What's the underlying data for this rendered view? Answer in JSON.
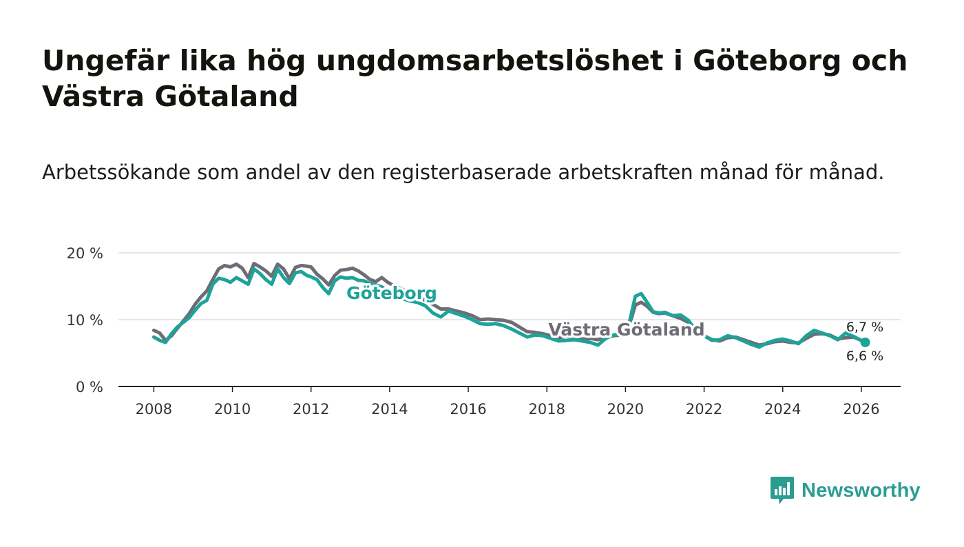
{
  "title": "Ungefär lika hög ungdomsarbetslöshet i Göteborg och Västra Götaland",
  "subtitle": "Arbetssökande som andel av den registerbaserade arbetskraften månad för månad.",
  "brand": {
    "name": "Newsworthy",
    "color": "#2a9d91"
  },
  "chart_data": {
    "type": "line",
    "title": "Ungefär lika hög ungdomsarbetslöshet i Göteborg och Västra Götaland",
    "subtitle": "Arbetssökande som andel av den registerbaserade arbetskraften månad för månad.",
    "xlabel": "",
    "ylabel": "",
    "xlim": [
      2007.1,
      2027.0
    ],
    "ylim": [
      0,
      20
    ],
    "y_ticks": [
      0,
      10,
      20
    ],
    "y_tick_labels": [
      "0 %",
      "10 %",
      "20 %"
    ],
    "x_ticks": [
      2008,
      2010,
      2012,
      2014,
      2016,
      2018,
      2020,
      2022,
      2024,
      2026
    ],
    "x_tick_labels": [
      "2008",
      "2010",
      "2012",
      "2014",
      "2016",
      "2018",
      "2020",
      "2022",
      "2024",
      "2026"
    ],
    "grid": "horizontal",
    "series": [
      {
        "name": "Västra Götaland",
        "label": "Västra Götaland",
        "color": "#6e6c74",
        "end_label": "6,7 %",
        "x": [
          2008.0,
          2008.15,
          2008.3,
          2008.45,
          2008.6,
          2008.75,
          2008.9,
          2009.05,
          2009.2,
          2009.35,
          2009.5,
          2009.65,
          2009.8,
          2009.95,
          2010.1,
          2010.25,
          2010.4,
          2010.55,
          2010.7,
          2010.85,
          2011.0,
          2011.15,
          2011.3,
          2011.45,
          2011.6,
          2011.75,
          2011.9,
          2012.0,
          2012.15,
          2012.3,
          2012.45,
          2012.6,
          2012.75,
          2012.9,
          2013.05,
          2013.2,
          2013.35,
          2013.5,
          2013.65,
          2013.8,
          2013.95,
          2014.1,
          2014.3,
          2014.5,
          2014.7,
          2014.9,
          2015.1,
          2015.3,
          2015.5,
          2015.7,
          2015.9,
          2016.1,
          2016.3,
          2016.5,
          2016.7,
          2016.9,
          2017.1,
          2017.3,
          2017.5,
          2017.7,
          2017.9,
          2018.1,
          2018.3,
          2018.5,
          2018.7,
          2018.9,
          2019.1,
          2019.3,
          2019.5,
          2019.7,
          2019.9,
          2020.1,
          2020.25,
          2020.4,
          2020.55,
          2020.7,
          2020.85,
          2021.0,
          2021.2,
          2021.4,
          2021.6,
          2021.8,
          2022.0,
          2022.2,
          2022.4,
          2022.6,
          2022.8,
          2023.0,
          2023.2,
          2023.4,
          2023.6,
          2023.8,
          2024.0,
          2024.2,
          2024.4,
          2024.6,
          2024.8,
          2025.0,
          2025.2,
          2025.4,
          2025.6,
          2025.8,
          2026.0,
          2026.1
        ],
        "y": [
          8.4,
          8.0,
          6.9,
          7.6,
          8.7,
          9.8,
          10.9,
          12.3,
          13.4,
          14.3,
          16.0,
          17.6,
          18.1,
          17.9,
          18.3,
          17.7,
          16.3,
          18.4,
          17.9,
          17.3,
          16.5,
          18.3,
          17.6,
          16.1,
          17.8,
          18.1,
          18.0,
          17.9,
          16.8,
          16.1,
          15.2,
          16.6,
          17.4,
          17.5,
          17.7,
          17.3,
          16.7,
          16.0,
          15.7,
          16.3,
          15.6,
          15.1,
          14.6,
          14.0,
          13.5,
          12.9,
          12.3,
          11.6,
          11.6,
          11.3,
          11.0,
          10.6,
          10.0,
          10.1,
          10.0,
          9.9,
          9.6,
          8.9,
          8.2,
          8.1,
          7.9,
          7.6,
          7.3,
          7.5,
          7.3,
          7.1,
          7.2,
          7.0,
          7.4,
          7.6,
          7.7,
          9.2,
          12.2,
          12.6,
          12.0,
          11.1,
          10.9,
          11.0,
          10.6,
          10.2,
          9.6,
          8.5,
          7.6,
          7.0,
          6.8,
          7.3,
          7.4,
          7.0,
          6.6,
          6.2,
          6.4,
          6.7,
          6.8,
          6.6,
          6.5,
          7.2,
          7.8,
          7.9,
          7.7,
          7.1,
          7.3,
          7.4,
          6.9,
          6.7
        ]
      },
      {
        "name": "Göteborg",
        "label": "Göteborg",
        "color": "#1da399",
        "end_label": "6,6 %",
        "x": [
          2008.0,
          2008.15,
          2008.3,
          2008.45,
          2008.6,
          2008.75,
          2008.9,
          2009.05,
          2009.2,
          2009.35,
          2009.5,
          2009.65,
          2009.8,
          2009.95,
          2010.1,
          2010.25,
          2010.4,
          2010.55,
          2010.7,
          2010.85,
          2011.0,
          2011.15,
          2011.3,
          2011.45,
          2011.6,
          2011.75,
          2011.9,
          2012.0,
          2012.15,
          2012.3,
          2012.45,
          2012.6,
          2012.75,
          2012.9,
          2013.05,
          2013.2,
          2013.35,
          2013.5,
          2013.65,
          2013.8,
          2013.95,
          2014.1,
          2014.3,
          2014.5,
          2014.7,
          2014.9,
          2015.1,
          2015.3,
          2015.5,
          2015.7,
          2015.9,
          2016.1,
          2016.3,
          2016.5,
          2016.7,
          2016.9,
          2017.1,
          2017.3,
          2017.5,
          2017.7,
          2017.9,
          2018.1,
          2018.3,
          2018.5,
          2018.7,
          2018.9,
          2019.1,
          2019.3,
          2019.5,
          2019.7,
          2019.9,
          2020.1,
          2020.25,
          2020.4,
          2020.55,
          2020.7,
          2020.85,
          2021.0,
          2021.2,
          2021.4,
          2021.6,
          2021.8,
          2022.0,
          2022.2,
          2022.4,
          2022.6,
          2022.8,
          2023.0,
          2023.2,
          2023.4,
          2023.6,
          2023.8,
          2024.0,
          2024.2,
          2024.4,
          2024.6,
          2024.8,
          2025.0,
          2025.2,
          2025.4,
          2025.6,
          2025.8,
          2026.0,
          2026.1
        ],
        "y": [
          7.4,
          6.9,
          6.6,
          7.9,
          8.9,
          9.6,
          10.3,
          11.4,
          12.4,
          12.9,
          15.3,
          16.2,
          16.0,
          15.6,
          16.3,
          15.8,
          15.3,
          17.6,
          16.9,
          16.0,
          15.3,
          17.6,
          16.3,
          15.4,
          17.0,
          17.2,
          16.6,
          16.4,
          16.0,
          14.8,
          13.9,
          15.8,
          16.4,
          16.2,
          16.3,
          15.9,
          15.8,
          15.4,
          15.2,
          14.9,
          14.2,
          13.6,
          13.2,
          12.8,
          12.6,
          12.1,
          11.0,
          10.4,
          11.3,
          10.9,
          10.5,
          10.0,
          9.4,
          9.3,
          9.4,
          9.1,
          8.6,
          8.0,
          7.4,
          7.7,
          7.6,
          7.2,
          6.8,
          6.9,
          7.0,
          6.8,
          6.6,
          6.2,
          7.2,
          7.7,
          7.9,
          9.6,
          13.5,
          13.9,
          12.6,
          11.2,
          11.0,
          11.1,
          10.6,
          10.7,
          9.9,
          8.3,
          7.6,
          6.9,
          7.0,
          7.6,
          7.3,
          6.8,
          6.3,
          5.9,
          6.5,
          6.9,
          7.1,
          6.8,
          6.4,
          7.6,
          8.4,
          8.0,
          7.6,
          7.0,
          8.0,
          7.5,
          6.9,
          6.6
        ]
      }
    ]
  }
}
